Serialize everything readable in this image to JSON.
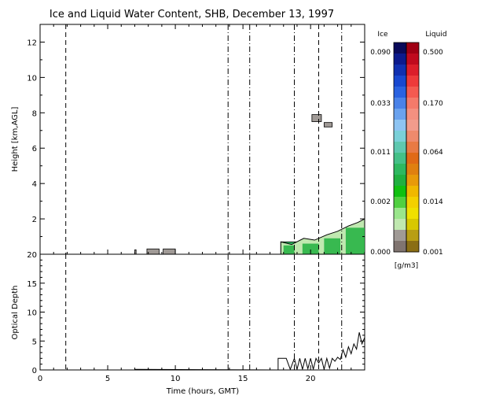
{
  "chart_data": [
    {
      "type": "heatmap",
      "title": "Ice and Liquid Water Content, SHB, December 13, 1997",
      "xlabel": "",
      "ylabel": "Height [km,AGL]",
      "xlim": [
        0,
        24
      ],
      "ylim": [
        0,
        13
      ],
      "xticks": [
        "0",
        "5",
        "10",
        "15",
        "20"
      ],
      "yticks": [
        "2",
        "4",
        "6",
        "8",
        "10",
        "12"
      ],
      "dashed_times": [
        1.9,
        20.6
      ],
      "dashdot_times": [
        13.9,
        15.5,
        18.8,
        22.3
      ],
      "cloud_regions": [
        {
          "x0": 7.0,
          "x1": 7.1,
          "y0": 0.0,
          "y1": 0.25,
          "kind": "ice"
        },
        {
          "x0": 7.9,
          "x1": 8.8,
          "y0": 0.0,
          "y1": 0.3,
          "kind": "ice"
        },
        {
          "x0": 9.1,
          "x1": 10.0,
          "y0": 0.0,
          "y1": 0.3,
          "kind": "ice"
        },
        {
          "x0": 17.8,
          "x1": 24.0,
          "y0": 0.0,
          "y1": 0.7,
          "kind": "liquid"
        },
        {
          "x0": 20.1,
          "x1": 20.8,
          "y0": 7.5,
          "y1": 7.9,
          "kind": "ice"
        },
        {
          "x0": 21.0,
          "x1": 21.6,
          "y0": 7.2,
          "y1": 7.45,
          "kind": "ice"
        }
      ],
      "cloud_top_profile": {
        "x": [
          17.8,
          18.6,
          19.5,
          20.3,
          21.2,
          22.0,
          22.8,
          23.5,
          24.0
        ],
        "y": [
          0.7,
          0.55,
          0.9,
          0.8,
          1.1,
          1.3,
          1.6,
          1.8,
          2.0
        ]
      }
    },
    {
      "type": "line",
      "xlabel": "Time (hours, GMT)",
      "ylabel": "Optical Depth",
      "xlim": [
        0,
        24
      ],
      "ylim": [
        0,
        20
      ],
      "xticks": [
        "0",
        "5",
        "10",
        "15",
        "20"
      ],
      "yticks": [
        "0",
        "5",
        "10",
        "15",
        "20"
      ],
      "dashed_times": [
        1.9,
        20.6
      ],
      "dashdot_times": [
        13.9,
        15.5,
        18.8,
        22.3
      ],
      "series": [
        {
          "x": [
            0,
            7.0,
            7.05,
            17.6,
            17.6,
            18.2,
            18.5,
            18.8,
            19.0,
            19.2,
            19.4,
            19.6,
            19.8,
            20.0,
            20.2,
            20.4,
            20.6,
            20.8,
            21.0,
            21.2,
            21.4,
            21.6,
            21.8,
            22.0,
            22.2,
            22.4,
            22.6,
            22.8,
            23.0,
            23.2,
            23.4,
            23.6,
            23.8,
            24.0
          ],
          "y": [
            0,
            0,
            0.1,
            0,
            2,
            2,
            0.1,
            2,
            0.1,
            2,
            0.1,
            2,
            0.2,
            2,
            0.1,
            2,
            1.2,
            2,
            0.1,
            2,
            0.3,
            2,
            1.5,
            2.2,
            1.8,
            3.5,
            2.2,
            4,
            2.8,
            4.5,
            3.6,
            6.5,
            4.5,
            5.6
          ]
        }
      ]
    }
  ],
  "colorbar": {
    "ice_title": "Ice",
    "liquid_title": "Liquid",
    "units": "[g/m3]",
    "ice_labels": [
      "0.090",
      "0.033",
      "0.011",
      "0.002",
      "0.000"
    ],
    "liquid_labels": [
      "0.500",
      "0.170",
      "0.064",
      "0.014",
      "0.001"
    ],
    "ice_colors": [
      "#0a0a5a",
      "#0c1a8c",
      "#1030b0",
      "#1848d0",
      "#2a62e0",
      "#4a82e8",
      "#6aa2ee",
      "#8ec4f2",
      "#7ad0d8",
      "#5ec8b0",
      "#44c088",
      "#2eb860",
      "#20b040",
      "#10c010",
      "#50d040",
      "#9ae68c",
      "#c0e8b0",
      "#a09a96",
      "#807470"
    ],
    "liquid_colors": [
      "#a00014",
      "#c00a1e",
      "#dc1e2a",
      "#ee3a3a",
      "#f45a50",
      "#f47a6a",
      "#f49080",
      "#f29c8c",
      "#ee8a6c",
      "#e87a44",
      "#e06a16",
      "#e08010",
      "#e89a0a",
      "#f0b800",
      "#f4d000",
      "#f0e000",
      "#d8c800",
      "#b89e14",
      "#8a6e14"
    ]
  }
}
